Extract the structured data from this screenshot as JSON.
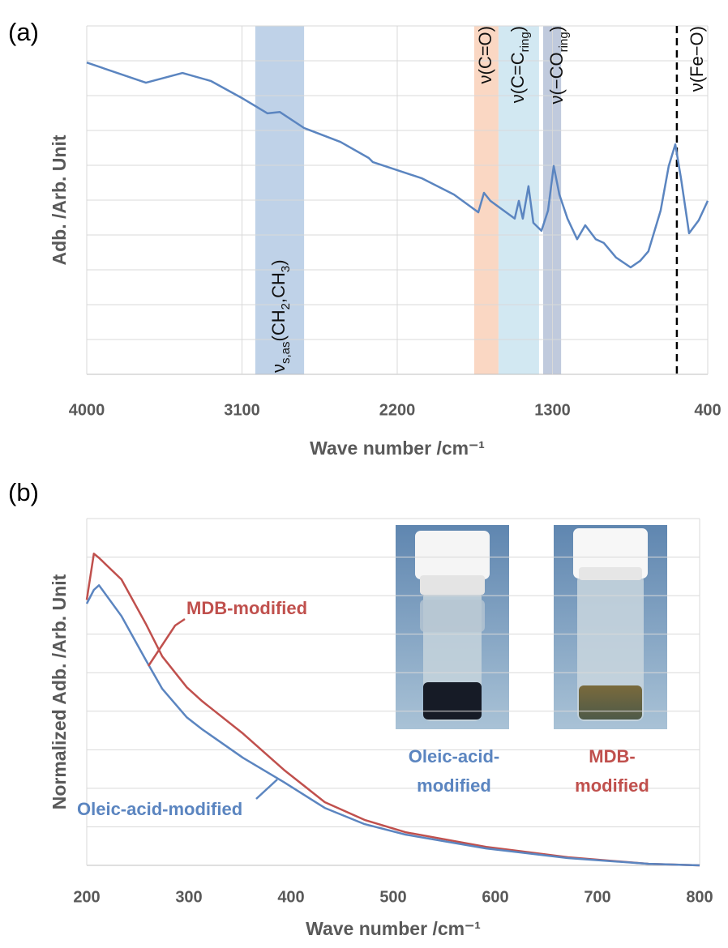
{
  "chart_data": [
    {
      "type": "line",
      "panel_label": "(a)",
      "y_label": "Adb. /Arb. Unit",
      "x_label": "Wave number /cm⁻¹",
      "xlim": [
        4000,
        400
      ],
      "xticks": [
        4000,
        3100,
        2200,
        1300,
        400
      ],
      "ylim": [
        0,
        10
      ],
      "yticks": [
        0,
        1,
        2,
        3,
        4,
        5,
        6,
        7,
        8,
        9,
        10
      ],
      "xgrid": true,
      "ygrid": true,
      "color": "#5b85c0",
      "x": [
        4000,
        3657,
        3445,
        3281,
        3093,
        2952,
        2881,
        2740,
        2529,
        2365,
        2341,
        2059,
        1871,
        1730,
        1697,
        1660,
        1519,
        1495,
        1472,
        1439,
        1411,
        1364,
        1326,
        1293,
        1260,
        1213,
        1157,
        1110,
        1049,
        1002,
        931,
        847,
        791,
        744,
        673,
        626,
        588,
        555,
        508,
        452,
        400
      ],
      "values": [
        8.95,
        8.37,
        8.65,
        8.42,
        7.91,
        7.49,
        7.53,
        7.07,
        6.67,
        6.21,
        6.09,
        5.63,
        5.16,
        4.65,
        5.21,
        4.98,
        4.47,
        4.98,
        4.47,
        5.4,
        4.35,
        4.12,
        4.7,
        5.98,
        5.16,
        4.47,
        3.88,
        4.28,
        3.88,
        3.77,
        3.35,
        3.07,
        3.26,
        3.53,
        4.7,
        5.98,
        6.6,
        5.63,
        4.05,
        4.42,
        4.98
      ],
      "bands": [
        {
          "xrange": [
            3023,
            2740
          ],
          "color": "#b8cde6",
          "label": [
            {
              "t": "ν"
            },
            {
              "sub": "s,as"
            },
            {
              "t": "(CH"
            },
            {
              "sub": "2"
            },
            {
              "t": ",CH"
            },
            {
              "sub": "3"
            },
            {
              "t": ")"
            }
          ]
        },
        {
          "xrange": [
            1754,
            1613
          ],
          "color": "#f9d3bd",
          "label": [
            {
              "t": "ν(C=O)"
            }
          ]
        },
        {
          "xrange": [
            1613,
            1378
          ],
          "color": "#cde6f1",
          "label": [
            {
              "t": "ν(C=C"
            },
            {
              "sub": "ring"
            },
            {
              "t": ")"
            }
          ]
        },
        {
          "xrange": [
            1354,
            1250
          ],
          "color": "#b9c4d9",
          "label": [
            {
              "t": "ν(−CO"
            },
            {
              "sub": "ring"
            },
            {
              "t": ")"
            }
          ]
        }
      ],
      "vline": {
        "x": 579,
        "label": [
          {
            "t": "ν(Fe−O)"
          }
        ]
      }
    },
    {
      "type": "line",
      "panel_label": "(b)",
      "y_label": "Normalized Adb. /Arb. Unit",
      "x_label": "Wave number /cm⁻¹",
      "xlim": [
        200,
        800
      ],
      "xticks": [
        200,
        300,
        400,
        500,
        600,
        700,
        800
      ],
      "ylim": [
        0,
        9
      ],
      "yticks": [
        0,
        1,
        2,
        3,
        4,
        5,
        6,
        7,
        8,
        9
      ],
      "xgrid": false,
      "ygrid": true,
      "x": [
        200,
        207,
        212,
        234,
        258,
        274,
        298,
        313,
        353,
        393,
        433,
        472,
        512,
        591,
        671,
        750,
        800
      ],
      "series": [
        {
          "name": "MDB-modified",
          "color": "#c0504d",
          "values": [
            6.89,
            8.09,
            7.98,
            7.42,
            6.26,
            5.42,
            4.62,
            4.26,
            3.42,
            2.48,
            1.64,
            1.18,
            0.86,
            0.48,
            0.21,
            0.04,
            0
          ]
        },
        {
          "name": "Oleic-acid-modified",
          "color": "#5b85c0",
          "values": [
            6.79,
            7.15,
            7.27,
            6.47,
            5.32,
            4.58,
            3.84,
            3.53,
            2.79,
            2.16,
            1.49,
            1.07,
            0.8,
            0.44,
            0.19,
            0.04,
            0
          ]
        }
      ],
      "photos": [
        {
          "caption": [
            "Oleic-acid-",
            "modified"
          ],
          "color": "#5b85c0"
        },
        {
          "caption": [
            "MDB-",
            "modified"
          ],
          "color": "#c0504d"
        }
      ]
    }
  ]
}
